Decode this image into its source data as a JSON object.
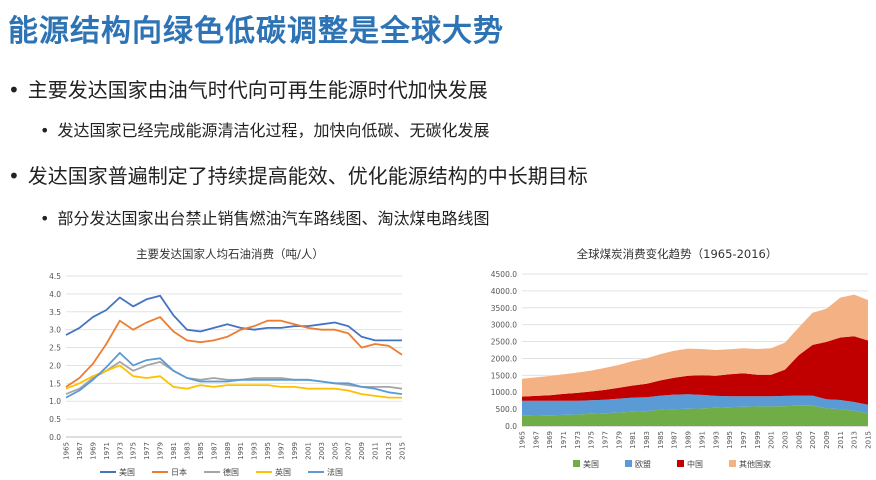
{
  "slide": {
    "title": "能源结构向绿色低碳调整是全球大势",
    "bullets": [
      {
        "text": "主要发达国家由油气时代向可再生能源时代加快发展",
        "level": 1
      },
      {
        "text": "发达国家已经完成能源清洁化过程，加快向低碳、无碳化发展",
        "level": 2
      },
      {
        "text": "发达国家普遍制定了持续提高能效、优化能源结构的中长期目标",
        "level": 1
      },
      {
        "text": "部分发达国家出台禁止销售燃油汽车路线图、淘汰煤电路线图",
        "level": 2
      }
    ]
  },
  "chart_data": [
    {
      "type": "line",
      "title": "主要发达国家人均石油消费（吨/人）",
      "xlabel": "",
      "ylabel": "",
      "ylim": [
        0,
        4.5
      ],
      "yticks": [
        "0.0",
        "0.5",
        "1.0",
        "1.5",
        "2.0",
        "2.5",
        "3.0",
        "3.5",
        "4.0",
        "4.5"
      ],
      "x": [
        1965,
        1967,
        1969,
        1971,
        1973,
        1975,
        1977,
        1979,
        1981,
        1983,
        1985,
        1987,
        1989,
        1991,
        1993,
        1995,
        1997,
        1999,
        2001,
        2003,
        2005,
        2007,
        2009,
        2011,
        2013,
        2015
      ],
      "grid": true,
      "legend": "bottom",
      "series": [
        {
          "name": "美国",
          "color": "#4472c4",
          "values": [
            2.85,
            3.05,
            3.35,
            3.55,
            3.9,
            3.65,
            3.85,
            3.95,
            3.4,
            3.0,
            2.95,
            3.05,
            3.15,
            3.05,
            3.0,
            3.05,
            3.05,
            3.1,
            3.1,
            3.15,
            3.2,
            3.1,
            2.8,
            2.7,
            2.7,
            2.7
          ]
        },
        {
          "name": "日本",
          "color": "#ed7d31",
          "values": [
            1.4,
            1.65,
            2.05,
            2.6,
            3.25,
            3.0,
            3.2,
            3.35,
            2.95,
            2.7,
            2.65,
            2.7,
            2.8,
            3.0,
            3.1,
            3.25,
            3.25,
            3.15,
            3.05,
            3.0,
            3.0,
            2.9,
            2.5,
            2.6,
            2.55,
            2.3
          ]
        },
        {
          "name": "德国",
          "color": "#a5a5a5",
          "values": [
            1.2,
            1.35,
            1.65,
            1.85,
            2.1,
            1.85,
            2.0,
            2.1,
            1.85,
            1.65,
            1.6,
            1.65,
            1.6,
            1.6,
            1.65,
            1.65,
            1.65,
            1.6,
            1.6,
            1.55,
            1.5,
            1.45,
            1.4,
            1.4,
            1.4,
            1.35
          ]
        },
        {
          "name": "英国",
          "color": "#ffc000",
          "values": [
            1.35,
            1.5,
            1.7,
            1.85,
            2.0,
            1.7,
            1.65,
            1.7,
            1.4,
            1.35,
            1.45,
            1.4,
            1.45,
            1.45,
            1.45,
            1.45,
            1.4,
            1.4,
            1.35,
            1.35,
            1.35,
            1.3,
            1.2,
            1.15,
            1.1,
            1.1
          ]
        },
        {
          "name": "法国",
          "color": "#5b9bd5",
          "values": [
            1.1,
            1.3,
            1.6,
            1.95,
            2.35,
            2.0,
            2.15,
            2.2,
            1.85,
            1.65,
            1.55,
            1.55,
            1.55,
            1.6,
            1.6,
            1.6,
            1.6,
            1.6,
            1.6,
            1.55,
            1.5,
            1.5,
            1.4,
            1.35,
            1.25,
            1.2
          ]
        }
      ]
    },
    {
      "type": "area",
      "stacked": true,
      "title": "全球煤炭消费变化趋势（1965-2016）",
      "xlabel": "",
      "ylabel": "",
      "ylim": [
        0,
        4500
      ],
      "yticks": [
        "0.0",
        "500.0",
        "1000.0",
        "1500.0",
        "2000.0",
        "2500.0",
        "3000.0",
        "3500.0",
        "4000.0",
        "4500.0"
      ],
      "x": [
        1965,
        1967,
        1969,
        1971,
        1973,
        1975,
        1977,
        1979,
        1981,
        1983,
        1985,
        1987,
        1989,
        1991,
        1993,
        1995,
        1997,
        1999,
        2001,
        2003,
        2005,
        2007,
        2009,
        2011,
        2013,
        2015
      ],
      "grid": true,
      "legend": "bottom",
      "series": [
        {
          "name": "美国",
          "color": "#70ad47",
          "values": [
            300,
            310,
            320,
            330,
            340,
            360,
            380,
            400,
            420,
            440,
            480,
            500,
            510,
            520,
            540,
            560,
            570,
            580,
            580,
            590,
            600,
            600,
            520,
            500,
            450,
            380
          ]
        },
        {
          "name": "欧盟",
          "color": "#5b9bd5",
          "values": [
            450,
            440,
            430,
            420,
            410,
            400,
            400,
            410,
            420,
            410,
            420,
            430,
            430,
            400,
            350,
            320,
            310,
            300,
            300,
            300,
            300,
            300,
            270,
            270,
            260,
            250
          ]
        },
        {
          "name": "中国",
          "color": "#c00000",
          "values": [
            120,
            140,
            160,
            200,
            230,
            260,
            290,
            320,
            360,
            400,
            450,
            500,
            550,
            580,
            600,
            650,
            680,
            640,
            640,
            780,
            1200,
            1500,
            1700,
            1850,
            1950,
            1900
          ]
        },
        {
          "name": "其他国家",
          "color": "#f4b183",
          "values": [
            530,
            550,
            570,
            580,
            600,
            620,
            650,
            680,
            720,
            750,
            780,
            800,
            800,
            780,
            760,
            740,
            740,
            760,
            780,
            800,
            820,
            950,
            980,
            1180,
            1230,
            1200
          ]
        }
      ]
    }
  ]
}
